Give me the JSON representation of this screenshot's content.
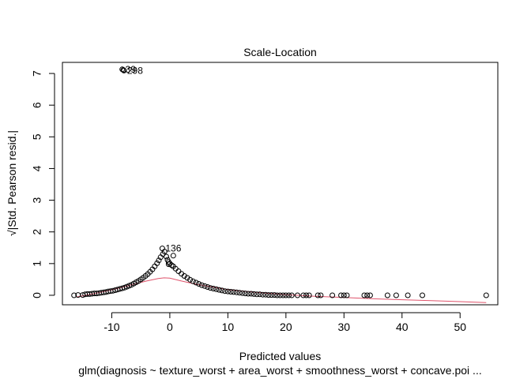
{
  "chart_data": {
    "type": "scatter",
    "title": "Scale-Location",
    "xlabel": "Predicted values",
    "ylabel": "√|Std. Pearson resid.|",
    "subtitle": "glm(diagnosis ~ texture_worst + area_worst + smoothness_worst + concave.poi ...",
    "xlim": [
      -18.5,
      56.5
    ],
    "ylim": [
      -0.3,
      7.35
    ],
    "x_ticks": [
      -10,
      0,
      10,
      20,
      30,
      40,
      50
    ],
    "x_tick_labels": [
      "-10",
      "0",
      "10",
      "20",
      "30",
      "40",
      "50"
    ],
    "y_ticks": [
      0,
      1,
      2,
      3,
      4,
      5,
      6,
      7
    ],
    "y_tick_labels": [
      "0",
      "1",
      "2",
      "3",
      "4",
      "5",
      "6",
      "7"
    ],
    "grid": false,
    "point_color": "#000000",
    "smooth_color": "#DF536B",
    "points": [
      [
        -16.5,
        0.0
      ],
      [
        -15.8,
        0.01
      ],
      [
        -15.0,
        0.01
      ],
      [
        -14.6,
        0.03
      ],
      [
        -14.2,
        0.04
      ],
      [
        -13.8,
        0.04
      ],
      [
        -13.4,
        0.05
      ],
      [
        -13.0,
        0.06
      ],
      [
        -12.6,
        0.06
      ],
      [
        -12.2,
        0.07
      ],
      [
        -11.8,
        0.08
      ],
      [
        -11.4,
        0.09
      ],
      [
        -11.0,
        0.1
      ],
      [
        -10.6,
        0.12
      ],
      [
        -10.2,
        0.13
      ],
      [
        -9.8,
        0.14
      ],
      [
        -9.4,
        0.16
      ],
      [
        -9.0,
        0.18
      ],
      [
        -8.6,
        0.2
      ],
      [
        -8.2,
        0.22
      ],
      [
        -7.8,
        0.24
      ],
      [
        -7.4,
        0.27
      ],
      [
        -7.0,
        0.3
      ],
      [
        -6.6,
        0.33
      ],
      [
        -6.2,
        0.37
      ],
      [
        -5.8,
        0.41
      ],
      [
        -5.4,
        0.45
      ],
      [
        -5.0,
        0.5
      ],
      [
        -4.6,
        0.55
      ],
      [
        -4.2,
        0.61
      ],
      [
        -3.8,
        0.67
      ],
      [
        -3.4,
        0.74
      ],
      [
        -3.0,
        0.82
      ],
      [
        -2.6,
        0.91
      ],
      [
        -2.2,
        1.01
      ],
      [
        -1.9,
        1.1
      ],
      [
        -1.6,
        1.2
      ],
      [
        -1.2,
        1.3
      ],
      [
        -0.9,
        1.38
      ],
      [
        -0.6,
        1.22
      ],
      [
        -0.4,
        1.12
      ],
      [
        -0.2,
        1.05
      ],
      [
        0.0,
        1.0
      ],
      [
        0.3,
        0.95
      ],
      [
        0.6,
        0.91
      ],
      [
        1.0,
        0.84
      ],
      [
        1.5,
        0.76
      ],
      [
        2.0,
        0.68
      ],
      [
        2.5,
        0.61
      ],
      [
        3.0,
        0.55
      ],
      [
        3.5,
        0.49
      ],
      [
        4.0,
        0.44
      ],
      [
        4.5,
        0.4
      ],
      [
        5.0,
        0.36
      ],
      [
        5.5,
        0.32
      ],
      [
        6.0,
        0.29
      ],
      [
        6.5,
        0.26
      ],
      [
        7.0,
        0.23
      ],
      [
        7.5,
        0.21
      ],
      [
        8.0,
        0.19
      ],
      [
        8.5,
        0.17
      ],
      [
        9.0,
        0.15
      ],
      [
        9.5,
        0.13
      ],
      [
        10.0,
        0.12
      ],
      [
        10.5,
        0.11
      ],
      [
        11.0,
        0.1
      ],
      [
        11.5,
        0.09
      ],
      [
        12.0,
        0.08
      ],
      [
        12.5,
        0.07
      ],
      [
        13.0,
        0.06
      ],
      [
        13.5,
        0.05
      ],
      [
        14.0,
        0.05
      ],
      [
        14.5,
        0.04
      ],
      [
        15.0,
        0.03
      ],
      [
        15.5,
        0.03
      ],
      [
        16.0,
        0.02
      ],
      [
        16.5,
        0.02
      ],
      [
        17.0,
        0.01
      ],
      [
        17.5,
        0.01
      ],
      [
        18.0,
        0.01
      ],
      [
        18.5,
        0.0
      ],
      [
        19.0,
        0.0
      ],
      [
        19.5,
        0.0
      ],
      [
        20.0,
        0.0
      ],
      [
        20.5,
        0.0
      ],
      [
        21.0,
        0.0
      ],
      [
        22.0,
        0.0
      ],
      [
        23.0,
        0.0
      ],
      [
        23.5,
        0.0
      ],
      [
        24.0,
        0.0
      ],
      [
        25.5,
        0.0
      ],
      [
        26.0,
        0.0
      ],
      [
        28.0,
        0.0
      ],
      [
        29.5,
        0.0
      ],
      [
        30.0,
        0.0
      ],
      [
        30.5,
        0.0
      ],
      [
        33.5,
        0.0
      ],
      [
        34.0,
        0.0
      ],
      [
        34.5,
        0.0
      ],
      [
        37.5,
        0.0
      ],
      [
        39.0,
        0.0
      ],
      [
        41.0,
        0.0
      ],
      [
        43.5,
        0.0
      ],
      [
        54.5,
        0.0
      ],
      [
        -1.3,
        1.48
      ],
      [
        0.6,
        1.25
      ],
      [
        -0.2,
        0.98
      ],
      [
        -8.2,
        7.13
      ],
      [
        -8.0,
        7.11
      ],
      [
        -7.9,
        7.09
      ]
    ],
    "labels": [
      {
        "x": -1.3,
        "y": 1.48,
        "text": "136"
      },
      {
        "x": -8.2,
        "y": 7.13,
        "text": "39"
      },
      {
        "x": -7.9,
        "y": 7.09,
        "text": "298"
      }
    ],
    "smooth_line": [
      [
        -16.0,
        -0.05
      ],
      [
        -14.0,
        0.02
      ],
      [
        -12.0,
        0.09
      ],
      [
        -10.0,
        0.17
      ],
      [
        -8.0,
        0.26
      ],
      [
        -6.0,
        0.36
      ],
      [
        -4.0,
        0.45
      ],
      [
        -2.0,
        0.53
      ],
      [
        -1.0,
        0.55
      ],
      [
        0.0,
        0.54
      ],
      [
        2.0,
        0.45
      ],
      [
        4.0,
        0.37
      ],
      [
        6.0,
        0.3
      ],
      [
        8.0,
        0.24
      ],
      [
        10.0,
        0.18
      ],
      [
        12.0,
        0.14
      ],
      [
        15.0,
        0.09
      ],
      [
        20.0,
        0.02
      ],
      [
        25.0,
        -0.03
      ],
      [
        30.0,
        -0.07
      ],
      [
        35.0,
        -0.11
      ],
      [
        40.0,
        -0.14
      ],
      [
        45.0,
        -0.17
      ],
      [
        50.0,
        -0.2
      ],
      [
        54.5,
        -0.23
      ]
    ]
  }
}
